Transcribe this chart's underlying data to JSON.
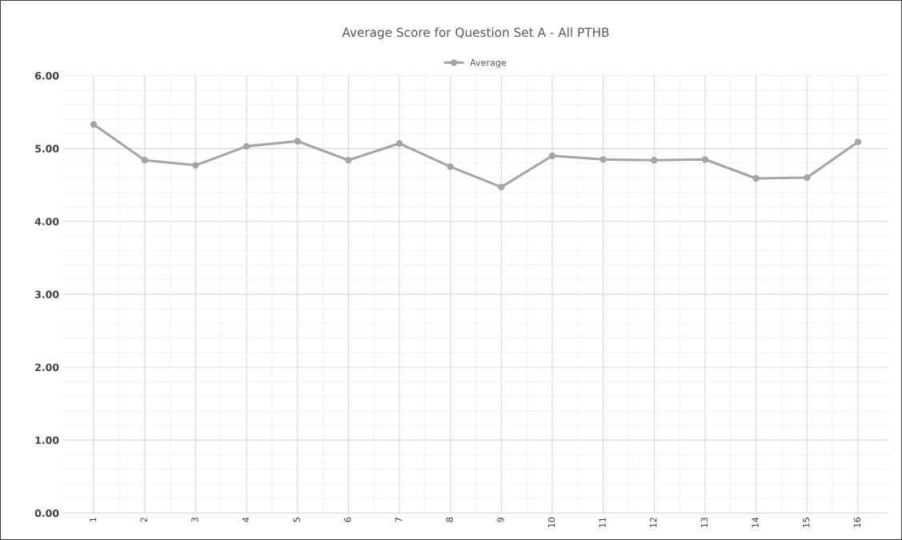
{
  "chart_data": {
    "type": "line",
    "title": "Average Score for Question Set A - All PTHB",
    "categories": [
      "1",
      "2",
      "3",
      "4",
      "5",
      "6",
      "7",
      "8",
      "9",
      "10",
      "11",
      "12",
      "13",
      "14",
      "15",
      "16"
    ],
    "series": [
      {
        "name": "Average",
        "color": "#a5a5a5",
        "values": [
          5.33,
          4.84,
          4.77,
          5.03,
          5.1,
          4.84,
          5.07,
          4.75,
          4.47,
          4.9,
          4.85,
          4.84,
          4.85,
          4.59,
          4.6,
          5.09
        ]
      }
    ],
    "ylim": [
      0,
      6
    ],
    "yticks": [
      {
        "value": 0,
        "label": "0.00"
      },
      {
        "value": 1,
        "label": "1.00"
      },
      {
        "value": 2,
        "label": "2.00"
      },
      {
        "value": 3,
        "label": "3.00"
      },
      {
        "value": 4,
        "label": "4.00"
      },
      {
        "value": 5,
        "label": "5.00"
      },
      {
        "value": 6,
        "label": "6.00"
      }
    ],
    "grid": true,
    "legend": "top",
    "marker": "circle",
    "line_style": "solid"
  }
}
